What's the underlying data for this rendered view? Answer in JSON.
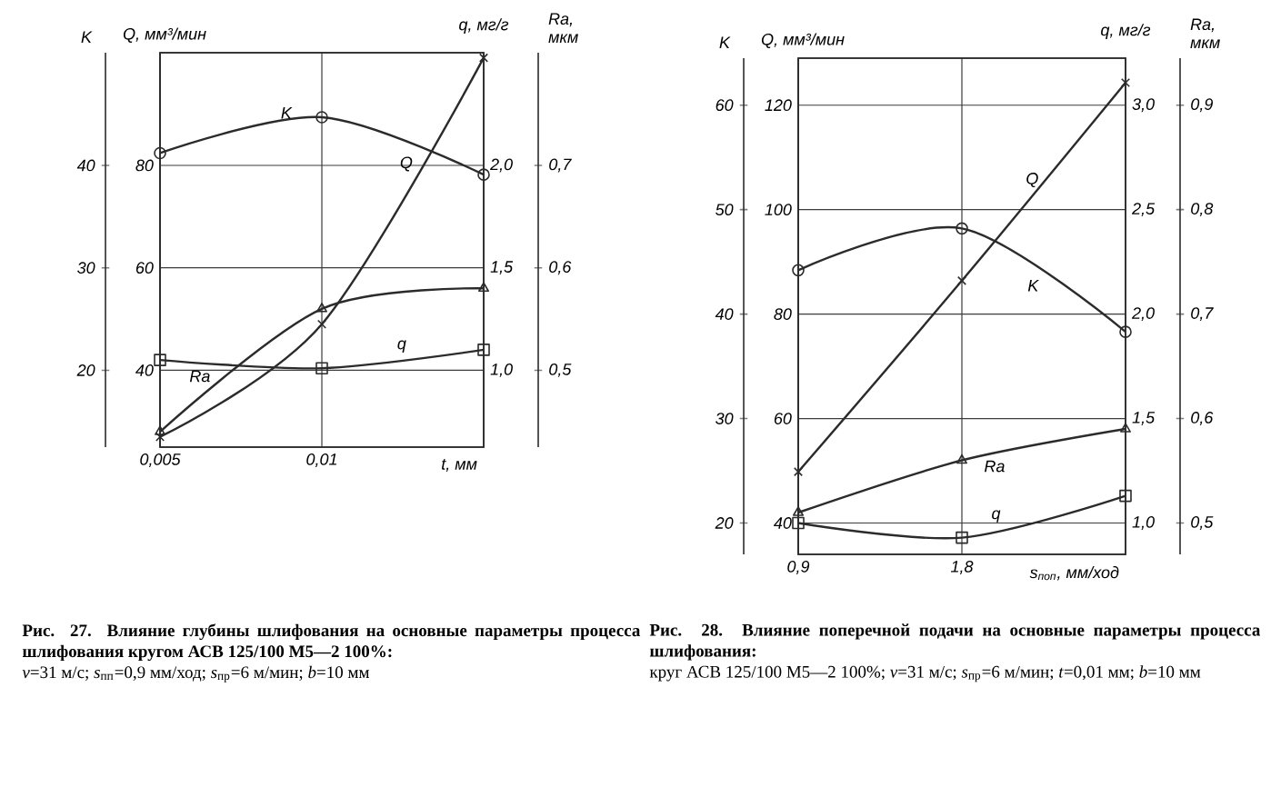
{
  "chart_data": [
    {
      "type": "line",
      "xlabel": "t, мм",
      "ylabel": "K",
      "y2label": "Q, мм³/мин",
      "x": [
        0.005,
        0.01,
        0.015
      ],
      "xlim": [
        0.005,
        0.015
      ],
      "xticks": [
        {
          "value": 0.005,
          "label": "0,005"
        },
        {
          "value": 0.01,
          "label": "0,01"
        }
      ],
      "ylim": [
        12.5,
        51
      ],
      "yticks": [
        20,
        30,
        40
      ],
      "y2lim": [
        25,
        102
      ],
      "y2ticks": [
        40,
        60,
        80
      ],
      "grid": true,
      "series": [
        {
          "name": "K",
          "color": "#2b2b2b",
          "marker": "circle",
          "values": [
            41.2,
            44.7,
            39.1
          ]
        },
        {
          "name": "Q",
          "color": "#2b2b2b",
          "marker": "cross",
          "axis": "y2",
          "values": [
            27,
            49,
            101
          ]
        }
      ],
      "annotations": [
        "Рис. 27. Влияние глубины шлифования на основные параметры процесса шлифования кругом АСВ 125/100 М5—2 100%:",
        "*v*=31 м/с; *s*$_{пп}$=0,9 мм/ход; *s*$_{пр}$=6 м/мин; *b*=10 мм"
      ]
    },
    {
      "type": "line",
      "ylabel": "q, мг/г",
      "y2label": "Ra, мкм",
      "tick_labels": "y",
      "x": [
        0.005,
        0.01,
        0.015
      ],
      "xlim": [
        0.005,
        0.015
      ],
      "ylim": [
        0.625,
        2.55
      ],
      "yticks": [
        {
          "value": 1.0,
          "label": "1,0"
        },
        {
          "value": 1.5,
          "label": "1,5"
        },
        {
          "value": 2.0,
          "label": "2,0"
        }
      ],
      "y2lim": [
        0.425,
        0.81
      ],
      "y2ticks": [
        {
          "value": 0.5,
          "label": "0,5"
        },
        {
          "value": 0.6,
          "label": "0,6"
        },
        {
          "value": 0.7,
          "label": "0,7"
        }
      ],
      "series": [
        {
          "name": "q",
          "color": "#2b2b2b",
          "marker": "square",
          "values": [
            1.05,
            1.01,
            1.1
          ]
        },
        {
          "name": "Ra",
          "color": "#2b2b2b",
          "marker": "triangle",
          "axis": "y2",
          "values": [
            0.44,
            0.56,
            0.58
          ]
        }
      ]
    },
    {
      "type": "line",
      "xlabel": "s$_{поп}$, мм/ход",
      "ylabel": "K",
      "y2label": "Q, мм³/мин",
      "x": [
        0.9,
        1.8,
        2.7
      ],
      "xlim": [
        0.9,
        2.7
      ],
      "xticks": [
        {
          "value": 0.9,
          "label": "0,9"
        },
        {
          "value": 1.8,
          "label": "1,8"
        }
      ],
      "ylim": [
        17,
        64.5
      ],
      "yticks": [
        20,
        30,
        40,
        50,
        60
      ],
      "y2lim": [
        34,
        129
      ],
      "y2ticks": [
        40,
        60,
        80,
        100,
        120
      ],
      "grid": true,
      "series": [
        {
          "name": "K",
          "color": "#2b2b2b",
          "marker": "circle",
          "values": [
            44.2,
            48.2,
            38.3
          ]
        },
        {
          "name": "Q",
          "color": "#2b2b2b",
          "marker": "cross",
          "axis": "y2",
          "values": [
            49.8,
            86.4,
            124.3
          ]
        }
      ],
      "annotations": [
        "Рис. 28. Влияние поперечной подачи на основные параметры процесса шлифования:",
        "круг АСВ 125/100 М5—2 100%; *v*=31 м/с; *s*$_{пр}$=6 м/мин; *t*=0,01 мм; *b*=10 мм"
      ]
    },
    {
      "type": "line",
      "ylabel": "q, мг/г",
      "y2label": "Ra, мкм",
      "tick_labels": "y",
      "x": [
        0.9,
        1.8,
        2.7
      ],
      "xlim": [
        0.9,
        2.7
      ],
      "ylim": [
        0.85,
        3.225
      ],
      "yticks": [
        {
          "value": 1.0,
          "label": "1,0"
        },
        {
          "value": 1.5,
          "label": "1,5"
        },
        {
          "value": 2.0,
          "label": "2,0"
        },
        {
          "value": 2.5,
          "label": "2,5"
        },
        {
          "value": 3.0,
          "label": "3,0"
        }
      ],
      "y2lim": [
        0.47,
        0.945
      ],
      "y2ticks": [
        {
          "value": 0.5,
          "label": "0,5"
        },
        {
          "value": 0.6,
          "label": "0,6"
        },
        {
          "value": 0.7,
          "label": "0,7"
        },
        {
          "value": 0.8,
          "label": "0,8"
        },
        {
          "value": 0.9,
          "label": "0,9"
        }
      ],
      "series": [
        {
          "name": "q",
          "color": "#2b2b2b",
          "marker": "square",
          "values": [
            1.0,
            0.93,
            1.13
          ]
        },
        {
          "name": "Ra",
          "color": "#2b2b2b",
          "marker": "triangle",
          "axis": "y2",
          "values": [
            0.51,
            0.56,
            0.59
          ]
        }
      ]
    }
  ]
}
